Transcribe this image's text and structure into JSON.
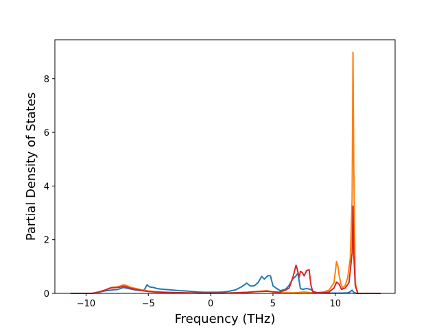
{
  "chart_data": {
    "type": "line",
    "title": "",
    "xlabel": "Frequency (THz)",
    "ylabel": "Partial Density of States",
    "xlim": [
      -12.5,
      14.8
    ],
    "ylim": [
      0,
      9.45
    ],
    "xticks": [
      -10,
      -5,
      0,
      5,
      10
    ],
    "xtick_labels": [
      "−10",
      "−5",
      "0",
      "5",
      "10"
    ],
    "yticks": [
      0,
      2,
      4,
      6,
      8
    ],
    "ytick_labels": [
      "0",
      "2",
      "4",
      "6",
      "8"
    ],
    "grid": false,
    "legend": "none",
    "series": [
      {
        "color": "#1f77b4",
        "x": [
          -11.2,
          -9.5,
          -9.0,
          -8.5,
          -8.0,
          -7.5,
          -7.0,
          -6.5,
          -6.0,
          -5.6,
          -5.3,
          -5.1,
          -4.9,
          -4.6,
          -4.3,
          -4.0,
          -3.5,
          -3.0,
          -2.5,
          -2.0,
          -1.5,
          -1.0,
          -0.5,
          0.0,
          0.5,
          1.0,
          1.5,
          2.0,
          2.5,
          2.9,
          3.2,
          3.5,
          3.8,
          4.1,
          4.3,
          4.6,
          4.8,
          5.0,
          5.3,
          5.6,
          6.0,
          6.3,
          6.6,
          6.8,
          7.0,
          7.2,
          7.4,
          7.7,
          8.0,
          8.3,
          8.6,
          9.0,
          9.5,
          10.0,
          10.5,
          11.0,
          11.2,
          11.35,
          11.5,
          11.7,
          12.0,
          12.5,
          13.6
        ],
        "y": [
          0,
          0,
          0.04,
          0.09,
          0.12,
          0.14,
          0.22,
          0.17,
          0.12,
          0.1,
          0.15,
          0.32,
          0.24,
          0.22,
          0.18,
          0.16,
          0.14,
          0.12,
          0.1,
          0.09,
          0.07,
          0.05,
          0.04,
          0.04,
          0.04,
          0.05,
          0.08,
          0.13,
          0.25,
          0.38,
          0.27,
          0.28,
          0.4,
          0.63,
          0.53,
          0.66,
          0.65,
          0.28,
          0.18,
          0.1,
          0.15,
          0.3,
          0.55,
          0.62,
          0.75,
          0.18,
          0.15,
          0.18,
          0.15,
          0.06,
          0.02,
          0.01,
          0.01,
          0.01,
          0.01,
          0.02,
          0.06,
          0.12,
          0.03,
          0.0,
          0,
          0,
          0
        ]
      },
      {
        "color": "#ff7f0e",
        "x": [
          -11.2,
          -9.5,
          -9.0,
          -8.5,
          -8.0,
          -7.5,
          -7.2,
          -7.0,
          -6.8,
          -6.5,
          -6.0,
          -5.5,
          -5.0,
          -4.5,
          -4.0,
          -3.0,
          -2.0,
          -1.0,
          0.0,
          1.0,
          2.0,
          3.0,
          3.5,
          4.0,
          4.5,
          5.0,
          5.5,
          6.0,
          6.5,
          7.0,
          7.5,
          8.0,
          8.5,
          9.0,
          9.5,
          9.9,
          10.1,
          10.2,
          10.3,
          10.45,
          10.6,
          10.8,
          11.0,
          11.2,
          11.35,
          11.42,
          11.48,
          11.6,
          11.8,
          12.0,
          13.6
        ],
        "y": [
          0,
          0,
          0.05,
          0.12,
          0.22,
          0.24,
          0.28,
          0.32,
          0.3,
          0.24,
          0.18,
          0.13,
          0.09,
          0.07,
          0.05,
          0.03,
          0.02,
          0.01,
          0.01,
          0.01,
          0.02,
          0.04,
          0.06,
          0.08,
          0.1,
          0.05,
          0.03,
          0.02,
          0.02,
          0.03,
          0.05,
          0.03,
          0.02,
          0.05,
          0.12,
          0.4,
          1.18,
          1.05,
          0.7,
          0.35,
          0.2,
          0.3,
          0.6,
          1.3,
          3.5,
          8.98,
          5.0,
          0.4,
          0.0,
          0,
          0
        ]
      },
      {
        "color": "#d62728",
        "x": [
          -11.2,
          -9.5,
          -9.0,
          -8.5,
          -8.0,
          -7.5,
          -7.2,
          -7.0,
          -6.8,
          -6.5,
          -6.0,
          -5.5,
          -5.0,
          -4.5,
          -4.0,
          -3.0,
          -2.0,
          -1.0,
          0.0,
          1.0,
          2.0,
          3.0,
          3.5,
          4.0,
          4.5,
          5.0,
          5.5,
          6.0,
          6.3,
          6.6,
          6.85,
          6.95,
          7.1,
          7.2,
          7.35,
          7.5,
          7.7,
          7.9,
          8.05,
          8.2,
          8.5,
          9.0,
          9.5,
          9.9,
          10.1,
          10.3,
          10.5,
          10.8,
          11.1,
          11.35,
          11.42,
          11.48,
          11.6,
          11.8,
          12.0,
          13.6
        ],
        "y": [
          0,
          0,
          0.05,
          0.12,
          0.2,
          0.22,
          0.24,
          0.27,
          0.25,
          0.2,
          0.15,
          0.1,
          0.07,
          0.05,
          0.04,
          0.03,
          0.02,
          0.01,
          0.01,
          0.01,
          0.02,
          0.04,
          0.06,
          0.07,
          0.08,
          0.06,
          0.04,
          0.12,
          0.2,
          0.6,
          1.05,
          0.9,
          0.6,
          0.82,
          0.78,
          0.65,
          0.85,
          0.88,
          0.3,
          0.05,
          0.03,
          0.02,
          0.05,
          0.2,
          0.42,
          0.35,
          0.15,
          0.2,
          0.4,
          1.5,
          3.25,
          1.5,
          0.3,
          0.0,
          0,
          0
        ]
      }
    ]
  }
}
